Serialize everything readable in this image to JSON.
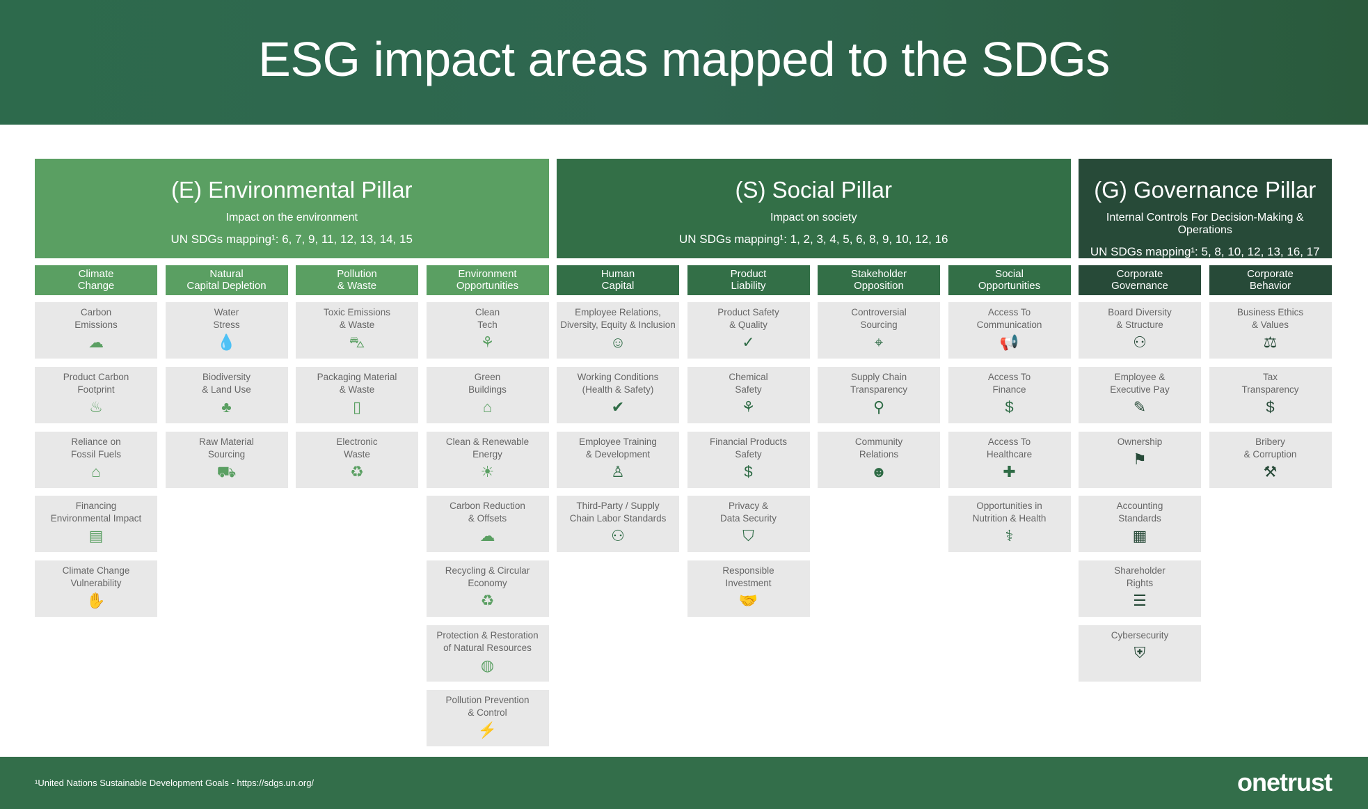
{
  "title": "ESG impact areas mapped to the SDGs",
  "colors": {
    "env": "#5a9f62",
    "soc": "#336f47",
    "gov": "#274a38",
    "card": "#e8e8e8"
  },
  "pillars": [
    {
      "title": "(E) Environmental Pillar",
      "subtitle": "Impact on the environment",
      "sdgs": "UN SDGs mapping¹: 6, 7, 9, 11, 12, 13, 14, 15",
      "color": "#5a9f62",
      "icon_color": "#5a9f62"
    },
    {
      "title": "(S) Social Pillar",
      "subtitle": "Impact on society",
      "sdgs": "UN SDGs mapping¹: 1, 2, 3, 4, 5, 6, 8, 9, 10, 12, 16",
      "color": "#336f47",
      "icon_color": "#2e6b45"
    },
    {
      "title": "(G) Governance Pillar",
      "subtitle": "Internal Controls For Decision-Making & Operations",
      "sdgs": "UN SDGs mapping¹: 5, 8, 10, 12, 13, 16, 17",
      "color": "#274a38",
      "icon_color": "#274a38"
    }
  ],
  "categories": [
    {
      "pillar": 0,
      "label": "Climate\nChange",
      "items": [
        {
          "label": "Carbon\nEmissions",
          "icon": "co2-cloud-icon"
        },
        {
          "label": "Product Carbon\nFootprint",
          "icon": "footprint-icon"
        },
        {
          "label": "Reliance on\nFossil Fuels",
          "icon": "factory-icon"
        },
        {
          "label": "Financing\nEnvironmental Impact",
          "icon": "money-icon"
        },
        {
          "label": "Climate Change\nVulnerability",
          "icon": "hand-plant-icon"
        }
      ]
    },
    {
      "pillar": 0,
      "label": "Natural\nCapital Depletion",
      "items": [
        {
          "label": "Water\nStress",
          "icon": "water-drop-icon"
        },
        {
          "label": "Biodiversity\n& Land Use",
          "icon": "trees-icon"
        },
        {
          "label": "Raw Material\nSourcing",
          "icon": "mine-cart-icon"
        }
      ]
    },
    {
      "pillar": 0,
      "label": "Pollution\n& Waste",
      "items": [
        {
          "label": "Toxic Emissions\n& Waste",
          "icon": "car-icon"
        },
        {
          "label": "Packaging Material\n& Waste",
          "icon": "bottle-icon"
        },
        {
          "label": "Electronic\nWaste",
          "icon": "battery-recycle-icon"
        }
      ]
    },
    {
      "pillar": 0,
      "label": "Environment\nOpportunities",
      "items": [
        {
          "label": "Clean\nTech",
          "icon": "plug-plant-icon"
        },
        {
          "label": "Green\nBuildings",
          "icon": "solar-house-icon"
        },
        {
          "label": "Clean & Renewable\nEnergy",
          "icon": "solar-panel-icon"
        },
        {
          "label": "Carbon Reduction\n& Offsets",
          "icon": "co2-cloud-icon"
        },
        {
          "label": "Recycling & Circular\nEconomy",
          "icon": "recycle-icon"
        },
        {
          "label": "Protection & Restoration\nof Natural Resources",
          "icon": "globe-hand-icon"
        },
        {
          "label": "Pollution Prevention\n& Control",
          "icon": "power-plant-icon"
        }
      ]
    },
    {
      "pillar": 1,
      "label": "Human\nCapital",
      "items": [
        {
          "label": "Employee Relations,\nDiversity, Equity & Inclusion",
          "icon": "people-group-icon"
        },
        {
          "label": "Working Conditions\n(Health & Safety)",
          "icon": "worker-check-icon"
        },
        {
          "label": "Employee Training\n& Development",
          "icon": "presenter-icon"
        },
        {
          "label": "Third-Party / Supply\nChain Labor Standards",
          "icon": "network-people-icon"
        }
      ]
    },
    {
      "pillar": 1,
      "label": "Product\nLiability",
      "items": [
        {
          "label": "Product Safety\n& Quality",
          "icon": "check-circle-icon"
        },
        {
          "label": "Chemical\nSafety",
          "icon": "factory-plant-icon"
        },
        {
          "label": "Financial Products\nSafety",
          "icon": "piggy-bank-icon"
        },
        {
          "label": "Privacy &\nData Security",
          "icon": "shield-icon"
        },
        {
          "label": "Responsible\nInvestment",
          "icon": "handshake-icon"
        }
      ]
    },
    {
      "pillar": 1,
      "label": "Stakeholder\nOpposition",
      "items": [
        {
          "label": "Controversial\nSourcing",
          "icon": "location-pin-icon"
        },
        {
          "label": "Supply Chain\nTransparency",
          "icon": "magnifier-icon"
        },
        {
          "label": "Community\nRelations",
          "icon": "community-icon"
        }
      ]
    },
    {
      "pillar": 1,
      "label": "Social\nOpportunities",
      "items": [
        {
          "label": "Access To\nCommunication",
          "icon": "megaphone-icon"
        },
        {
          "label": "Access To\nFinance",
          "icon": "person-dollar-icon"
        },
        {
          "label": "Access To\nHealthcare",
          "icon": "medical-cross-icon"
        },
        {
          "label": "Opportunities in\nNutrition & Health",
          "icon": "stethoscope-icon"
        }
      ]
    },
    {
      "pillar": 2,
      "label": "Corporate\nGovernance",
      "items": [
        {
          "label": "Board Diversity\n& Structure",
          "icon": "two-people-icon"
        },
        {
          "label": "Employee &\nExecutive Pay",
          "icon": "pay-check-icon"
        },
        {
          "label": "Ownership",
          "icon": "owner-flag-icon"
        },
        {
          "label": "Accounting\nStandards",
          "icon": "calculator-icon"
        },
        {
          "label": "Shareholder\nRights",
          "icon": "person-sliders-icon"
        },
        {
          "label": "Cybersecurity",
          "icon": "shield-lock-icon"
        }
      ]
    },
    {
      "pillar": 2,
      "label": "Corporate\nBehavior",
      "items": [
        {
          "label": "Business Ethics\n& Values",
          "icon": "scales-icon"
        },
        {
          "label": "Tax\nTransparency",
          "icon": "money-bag-icon"
        },
        {
          "label": "Bribery\n& Corruption",
          "icon": "gavel-icon"
        }
      ]
    }
  ],
  "footer": {
    "note": "¹United Nations Sustainable Development Goals - https://sdgs.un.org/",
    "logo": "onetrust"
  }
}
